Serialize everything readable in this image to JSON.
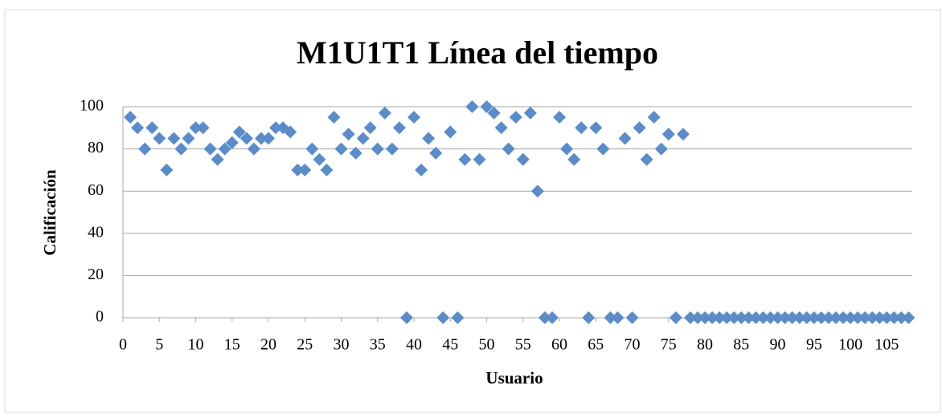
{
  "chart_data": {
    "type": "scatter",
    "title": "M1U1T1 Línea del tiempo",
    "x_label": "Usuario",
    "y_label": "Calificación",
    "x": [
      1,
      2,
      3,
      4,
      5,
      6,
      7,
      8,
      9,
      10,
      11,
      12,
      13,
      14,
      15,
      16,
      17,
      18,
      19,
      20,
      21,
      22,
      23,
      24,
      25,
      26,
      27,
      28,
      29,
      30,
      31,
      32,
      33,
      34,
      35,
      36,
      37,
      38,
      39,
      40,
      41,
      42,
      43,
      44,
      45,
      46,
      47,
      48,
      49,
      50,
      51,
      52,
      53,
      54,
      55,
      56,
      57,
      58,
      59,
      60,
      61,
      62,
      63,
      64,
      65,
      66,
      67,
      68,
      69,
      70,
      71,
      72,
      73,
      74,
      75,
      76,
      77,
      78,
      79,
      80,
      81,
      82,
      83,
      84,
      85,
      86,
      87,
      88,
      89,
      90,
      91,
      92,
      93,
      94,
      95,
      96,
      97,
      98,
      99,
      100,
      101,
      102,
      103,
      104,
      105,
      106,
      107,
      108
    ],
    "values": [
      95,
      90,
      80,
      90,
      85,
      70,
      85,
      80,
      85,
      90,
      90,
      80,
      75,
      80,
      83,
      88,
      85,
      80,
      85,
      85,
      90,
      90,
      88,
      70,
      70,
      80,
      75,
      70,
      95,
      80,
      87,
      78,
      85,
      90,
      80,
      97,
      80,
      90,
      0,
      95,
      70,
      85,
      78,
      0,
      88,
      0,
      75,
      100,
      75,
      100,
      97,
      90,
      80,
      95,
      75,
      97,
      60,
      0,
      0,
      95,
      80,
      75,
      90,
      0,
      90,
      80,
      0,
      0,
      85,
      0,
      90,
      75,
      95,
      80,
      87,
      0,
      87,
      0,
      0,
      0,
      0,
      0,
      0,
      0,
      0,
      0,
      0,
      0,
      0,
      0,
      0,
      0,
      0,
      0,
      0,
      0,
      0,
      0,
      0,
      0,
      0,
      0,
      0,
      0,
      0,
      0,
      0,
      0
    ],
    "color": "#5b8cc8",
    "xlim": [
      0,
      108.5
    ],
    "xticks": [
      0,
      5,
      10,
      15,
      20,
      25,
      30,
      35,
      40,
      45,
      50,
      55,
      60,
      65,
      70,
      75,
      80,
      85,
      90,
      95,
      100,
      105
    ],
    "ylim": [
      0,
      100
    ],
    "yticks": [
      0,
      20,
      40,
      60,
      80,
      100
    ],
    "grid": true
  }
}
